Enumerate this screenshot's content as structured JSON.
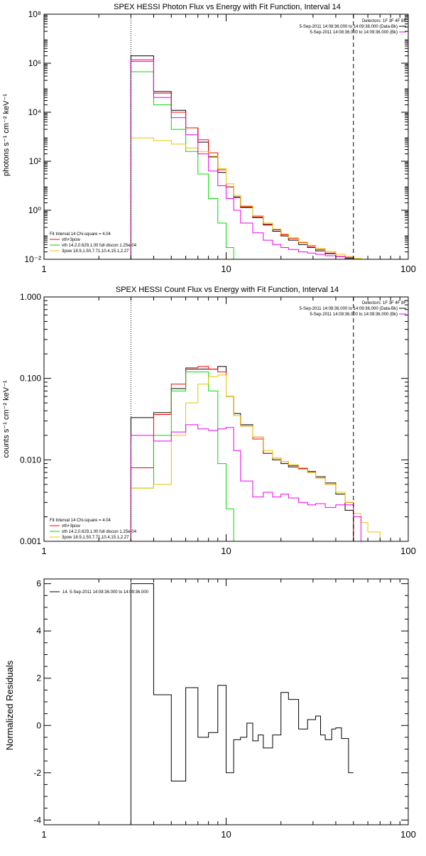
{
  "colors": {
    "data": "#000000",
    "total": "#ff0000",
    "thermal": "#00dd00",
    "powerlaw": "#e8c400",
    "background": "#ee00ee"
  },
  "chart_data": [
    {
      "type": "line",
      "title": "SPEX HESSI Photon Flux vs Energy with Fit Function, Interval 14",
      "xlabel": "",
      "ylabel": "photons s⁻¹ cm⁻² keV⁻¹",
      "xscale": "log",
      "yscale": "log",
      "xlim": [
        1,
        100
      ],
      "ylim": [
        0.01,
        100000000
      ],
      "xticks": [
        1,
        10,
        100
      ],
      "xtick_labels": [
        "1",
        "10",
        "100"
      ],
      "yticks": [
        0.01,
        1,
        100,
        10000,
        1000000,
        100000000
      ],
      "ytick_labels": [
        "10⁻²",
        "10⁰",
        "10²",
        "10⁴",
        "10⁶",
        "10⁸"
      ],
      "fit_range_lines": [
        3,
        50
      ],
      "legend_top": [
        "Detectors: 1F 3F 4F 8F",
        "5-Sep-2011 14:08:36.000 to 14:09:36.000 (Data-Bk)",
        "5-Sep-2011 14:08:36.000 to 14:09:36.000 (Bk)"
      ],
      "legend_bottom": [
        "Fit Interval 14   Chi-square = 4.04",
        "vth+3pow",
        "vth 14.2,0.629,1.00  full discon 1.25e-04",
        "3pow 18.9,1.50,7.71,10.4,15.1,2.27"
      ],
      "edges": [
        3,
        4,
        5,
        6,
        7,
        8,
        9,
        10,
        11,
        12,
        14,
        16,
        18,
        20,
        22,
        25,
        28,
        31,
        35,
        40,
        45,
        50,
        55,
        60
      ],
      "series": [
        {
          "name": "Data-Bk",
          "color": "data",
          "values": [
            2000000,
            70000,
            12000,
            2300,
            600,
            150,
            35,
            9,
            3.5,
            1.3,
            0.5,
            0.25,
            0.14,
            0.09,
            0.06,
            0.04,
            0.03,
            0.022,
            0.017,
            0.013,
            0.011,
            null,
            null
          ]
        },
        {
          "name": "vth+3pow",
          "color": "total",
          "values": [
            1200000,
            60000,
            10000,
            2300,
            750,
            220,
            45,
            9,
            3.3,
            1.4,
            0.55,
            0.27,
            0.16,
            0.1,
            0.07,
            0.048,
            0.034,
            0.025,
            0.018,
            0.013,
            0.01,
            null,
            null
          ]
        },
        {
          "name": "vth",
          "color": "thermal",
          "values": [
            450000,
            20000,
            2000,
            250,
            30,
            3,
            0.3,
            0.03,
            0.01,
            null,
            null,
            null,
            null,
            null,
            null,
            null,
            null,
            null,
            null,
            null,
            null,
            null,
            null
          ]
        },
        {
          "name": "3pow",
          "color": "powerlaw",
          "values": [
            900,
            700,
            500,
            350,
            250,
            160,
            50,
            12,
            4,
            1.5,
            0.6,
            0.3,
            0.17,
            0.11,
            0.075,
            0.05,
            0.037,
            0.028,
            0.021,
            0.016,
            0.013,
            0.011,
            0.01
          ]
        },
        {
          "name": "Bk",
          "color": "background",
          "values": [
            1400000,
            40000,
            6000,
            1200,
            200,
            40,
            10,
            3,
            1,
            0.3,
            0.12,
            0.06,
            0.04,
            0.03,
            0.025,
            0.02,
            0.018,
            0.016,
            0.014,
            0.013,
            0.012,
            null,
            null
          ]
        }
      ]
    },
    {
      "type": "line",
      "title": "SPEX HESSI Count Flux vs Energy with Fit Function, Interval 14",
      "xlabel": "",
      "ylabel": "counts s⁻¹ cm⁻² keV⁻¹",
      "xscale": "log",
      "yscale": "log",
      "xlim": [
        1,
        100
      ],
      "ylim": [
        0.001,
        1
      ],
      "xticks": [
        1,
        10,
        100
      ],
      "xtick_labels": [
        "1",
        "10",
        "100"
      ],
      "yticks": [
        0.001,
        0.01,
        0.1,
        1
      ],
      "ytick_labels": [
        "0.001",
        "0.010",
        "0.100",
        "1.000"
      ],
      "fit_range_lines": [
        3,
        50
      ],
      "legend_top": [
        "Detectors: 1F 3F 4F 8F",
        "5-Sep-2011 14:08:36.000 to 14:09:36.000 (Data-Bk)",
        "5-Sep-2011 14:08:36.000 to 14:09:36.000 (Bk)"
      ],
      "legend_bottom": [
        "Fit Interval 14   Chi-square = 4.04",
        "vth+3pow",
        "vth 14.2,0.629,1.00  full discon 1.25e-04",
        "3pow 18.9,1.50,7.71,10.4,15.1,2.27"
      ],
      "edges": [
        3,
        4,
        5,
        6,
        7,
        8,
        9,
        10,
        11,
        12,
        14,
        16,
        18,
        20,
        22,
        25,
        28,
        31,
        35,
        40,
        45,
        50,
        55,
        60,
        70,
        80,
        90
      ],
      "series": [
        {
          "name": "Data-Bk",
          "color": "data",
          "values": [
            0.033,
            0.038,
            0.075,
            0.13,
            0.13,
            0.13,
            0.14,
            0.06,
            0.037,
            0.027,
            0.019,
            0.012,
            0.01,
            0.009,
            0.0082,
            0.0078,
            0.0072,
            0.0062,
            0.0052,
            0.0038,
            0.0024,
            null,
            null,
            null,
            null,
            null
          ]
        },
        {
          "name": "vth+3pow",
          "color": "total",
          "values": [
            0.008,
            0.036,
            0.085,
            0.135,
            0.14,
            0.13,
            0.12,
            0.06,
            0.035,
            0.026,
            0.018,
            0.012,
            0.0105,
            0.0095,
            0.0085,
            0.0078,
            0.007,
            0.006,
            0.005,
            0.004,
            0.003,
            null,
            null,
            null,
            null,
            null
          ]
        },
        {
          "name": "vth",
          "color": "thermal",
          "values": [
            0.0045,
            0.02,
            0.07,
            0.12,
            0.12,
            0.07,
            0.009,
            0.0025,
            null,
            null,
            null,
            null,
            null,
            null,
            null,
            null,
            null,
            null,
            null,
            null,
            null,
            null,
            null,
            null,
            null,
            null
          ]
        },
        {
          "name": "3pow",
          "color": "powerlaw",
          "values": [
            0.0045,
            0.005,
            0.02,
            0.05,
            0.085,
            0.105,
            0.11,
            0.06,
            0.035,
            0.026,
            0.019,
            0.013,
            0.0105,
            0.0095,
            0.0087,
            0.008,
            0.007,
            0.006,
            0.005,
            0.004,
            0.003,
            0.0022,
            0.0017,
            0.0013,
            0.001,
            null
          ]
        },
        {
          "name": "Bk",
          "color": "background",
          "values": [
            0.02,
            0.017,
            0.022,
            0.027,
            0.024,
            0.023,
            0.024,
            0.025,
            0.013,
            0.0055,
            0.0035,
            0.004,
            0.0035,
            0.0038,
            0.0034,
            0.003,
            0.0028,
            0.0029,
            0.0026,
            0.0028,
            0.0028,
            0.002,
            null,
            null,
            null,
            null
          ]
        }
      ]
    },
    {
      "type": "line",
      "title": "",
      "xlabel": "",
      "ylabel": "Normalized Residuals",
      "xscale": "log",
      "yscale": "linear",
      "xlim": [
        1,
        100
      ],
      "ylim": [
        -4.2,
        6.2
      ],
      "xticks": [
        1,
        10,
        100
      ],
      "xtick_labels": [
        "1",
        "10",
        "100"
      ],
      "yticks": [
        -4,
        -2,
        0,
        2,
        4,
        6
      ],
      "ytick_labels": [
        "-4",
        "-2",
        "0",
        "2",
        "4",
        "6"
      ],
      "legend_top": [
        "14.  5-Sep-2011 14:08:36.000 to 14:09:36.000"
      ],
      "edges": [
        3,
        4,
        5,
        6,
        7,
        8,
        9,
        10,
        11,
        12,
        13,
        14,
        15,
        16,
        18,
        20,
        22,
        25,
        28,
        31,
        33,
        35,
        38,
        40,
        43,
        47,
        50
      ],
      "series": [
        {
          "name": "Residuals",
          "color": "data",
          "values": [
            6.0,
            1.3,
            -2.35,
            1.6,
            -0.5,
            -0.3,
            1.7,
            -2.0,
            -0.6,
            -0.5,
            0.1,
            -0.65,
            -0.4,
            -0.95,
            -0.4,
            1.4,
            1.1,
            -0.15,
            0.25,
            0.4,
            -0.4,
            -0.6,
            -0.15,
            -0.1,
            -0.55,
            -2.0
          ]
        }
      ]
    }
  ]
}
